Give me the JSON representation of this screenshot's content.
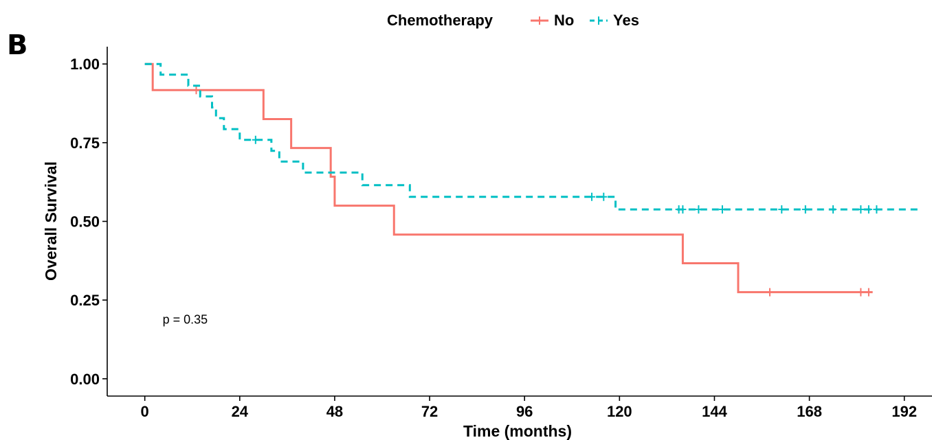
{
  "panel_label": "B",
  "chart_data": {
    "type": "line",
    "title": "",
    "xlabel": "Time (months)",
    "ylabel": "Overall Survival",
    "xlim": [
      -9.5,
      199
    ],
    "ylim": [
      -0.055,
      1.055
    ],
    "x_ticks": [
      0,
      24,
      48,
      72,
      96,
      120,
      144,
      168,
      192
    ],
    "y_ticks": [
      0.0,
      0.25,
      0.5,
      0.75,
      1.0
    ],
    "y_tick_labels": [
      "0.00",
      "0.25",
      "0.50",
      "0.75",
      "1.00"
    ],
    "legend": {
      "title": "Chemotherapy",
      "placement": "top"
    },
    "annotation": "p = 0.35",
    "annotation_pos": {
      "x": 4.5,
      "y": 0.19
    },
    "grid": false,
    "series": [
      {
        "name": "No",
        "color": "#F8766D",
        "dash": "solid",
        "steps": [
          [
            0,
            1.0
          ],
          [
            2,
            0.917
          ],
          [
            30,
            0.825
          ],
          [
            37,
            0.733
          ],
          [
            47,
            0.642
          ],
          [
            48,
            0.55
          ],
          [
            63,
            0.458
          ],
          [
            136,
            0.367
          ],
          [
            150,
            0.275
          ],
          [
            184,
            0.275
          ]
        ],
        "censor": [
          13,
          158,
          181,
          183
        ]
      },
      {
        "name": "Yes",
        "color": "#00BFC4",
        "dash": "dashed",
        "steps": [
          [
            0,
            1.0
          ],
          [
            4,
            0.966
          ],
          [
            11,
            0.931
          ],
          [
            14,
            0.897
          ],
          [
            17,
            0.862
          ],
          [
            18,
            0.828
          ],
          [
            20,
            0.793
          ],
          [
            24,
            0.759
          ],
          [
            32,
            0.724
          ],
          [
            34,
            0.69
          ],
          [
            40,
            0.655
          ],
          [
            55,
            0.615
          ],
          [
            67,
            0.578
          ],
          [
            119,
            0.538
          ],
          [
            196,
            0.538
          ]
        ],
        "censor": [
          28,
          113,
          116,
          135,
          136,
          140,
          146,
          161,
          167,
          174,
          181,
          183,
          185
        ]
      }
    ]
  }
}
